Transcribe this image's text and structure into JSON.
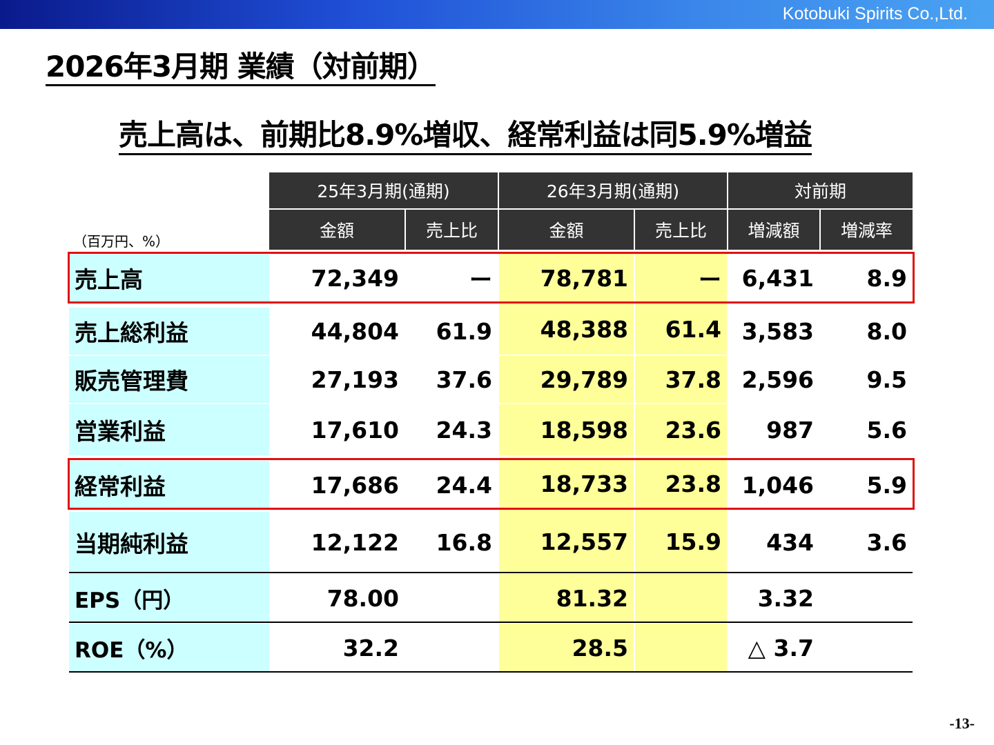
{
  "header": {
    "company": "Kotobuki Spirits Co.,Ltd."
  },
  "title": "2026年3月期 業績（対前期）",
  "subtitle": "売上高は、前期比8.9%増収、経常利益は同5.9%増益",
  "unit_note": "（百万円、%）",
  "table": {
    "group_headers": [
      "25年3月期(通期)",
      "26年3月期(通期)",
      "対前期"
    ],
    "sub_headers": [
      "金額",
      "売上比",
      "金額",
      "売上比",
      "増減額",
      "増減率"
    ],
    "rows": [
      {
        "label": "売上高",
        "prev_amount": "72,349",
        "prev_ratio": "ー",
        "cur_amount": "78,781",
        "cur_ratio": "ー",
        "change": "6,431",
        "rate": "8.9"
      },
      {
        "label": "売上総利益",
        "prev_amount": "44,804",
        "prev_ratio": "61.9",
        "cur_amount": "48,388",
        "cur_ratio": "61.4",
        "change": "3,583",
        "rate": "8.0"
      },
      {
        "label": "販売管理費",
        "prev_amount": "27,193",
        "prev_ratio": "37.6",
        "cur_amount": "29,789",
        "cur_ratio": "37.8",
        "change": "2,596",
        "rate": "9.5"
      },
      {
        "label": "営業利益",
        "prev_amount": "17,610",
        "prev_ratio": "24.3",
        "cur_amount": "18,598",
        "cur_ratio": "23.6",
        "change": "987",
        "rate": "5.6"
      },
      {
        "label": "経常利益",
        "prev_amount": "17,686",
        "prev_ratio": "24.4",
        "cur_amount": "18,733",
        "cur_ratio": "23.8",
        "change": "1,046",
        "rate": "5.9"
      },
      {
        "label": "当期純利益",
        "prev_amount": "12,122",
        "prev_ratio": "16.8",
        "cur_amount": "12,557",
        "cur_ratio": "15.9",
        "change": "434",
        "rate": "3.6"
      },
      {
        "label": "EPS（円）",
        "prev_amount": "78.00",
        "prev_ratio": "",
        "cur_amount": "81.32",
        "cur_ratio": "",
        "change": "3.32",
        "rate": ""
      },
      {
        "label": "ROE（%）",
        "prev_amount": "32.2",
        "prev_ratio": "",
        "cur_amount": "28.5",
        "cur_ratio": "",
        "change": "△ 3.7",
        "rate": ""
      }
    ],
    "highlight_color": "#e01010"
  },
  "page_number": "-13-"
}
